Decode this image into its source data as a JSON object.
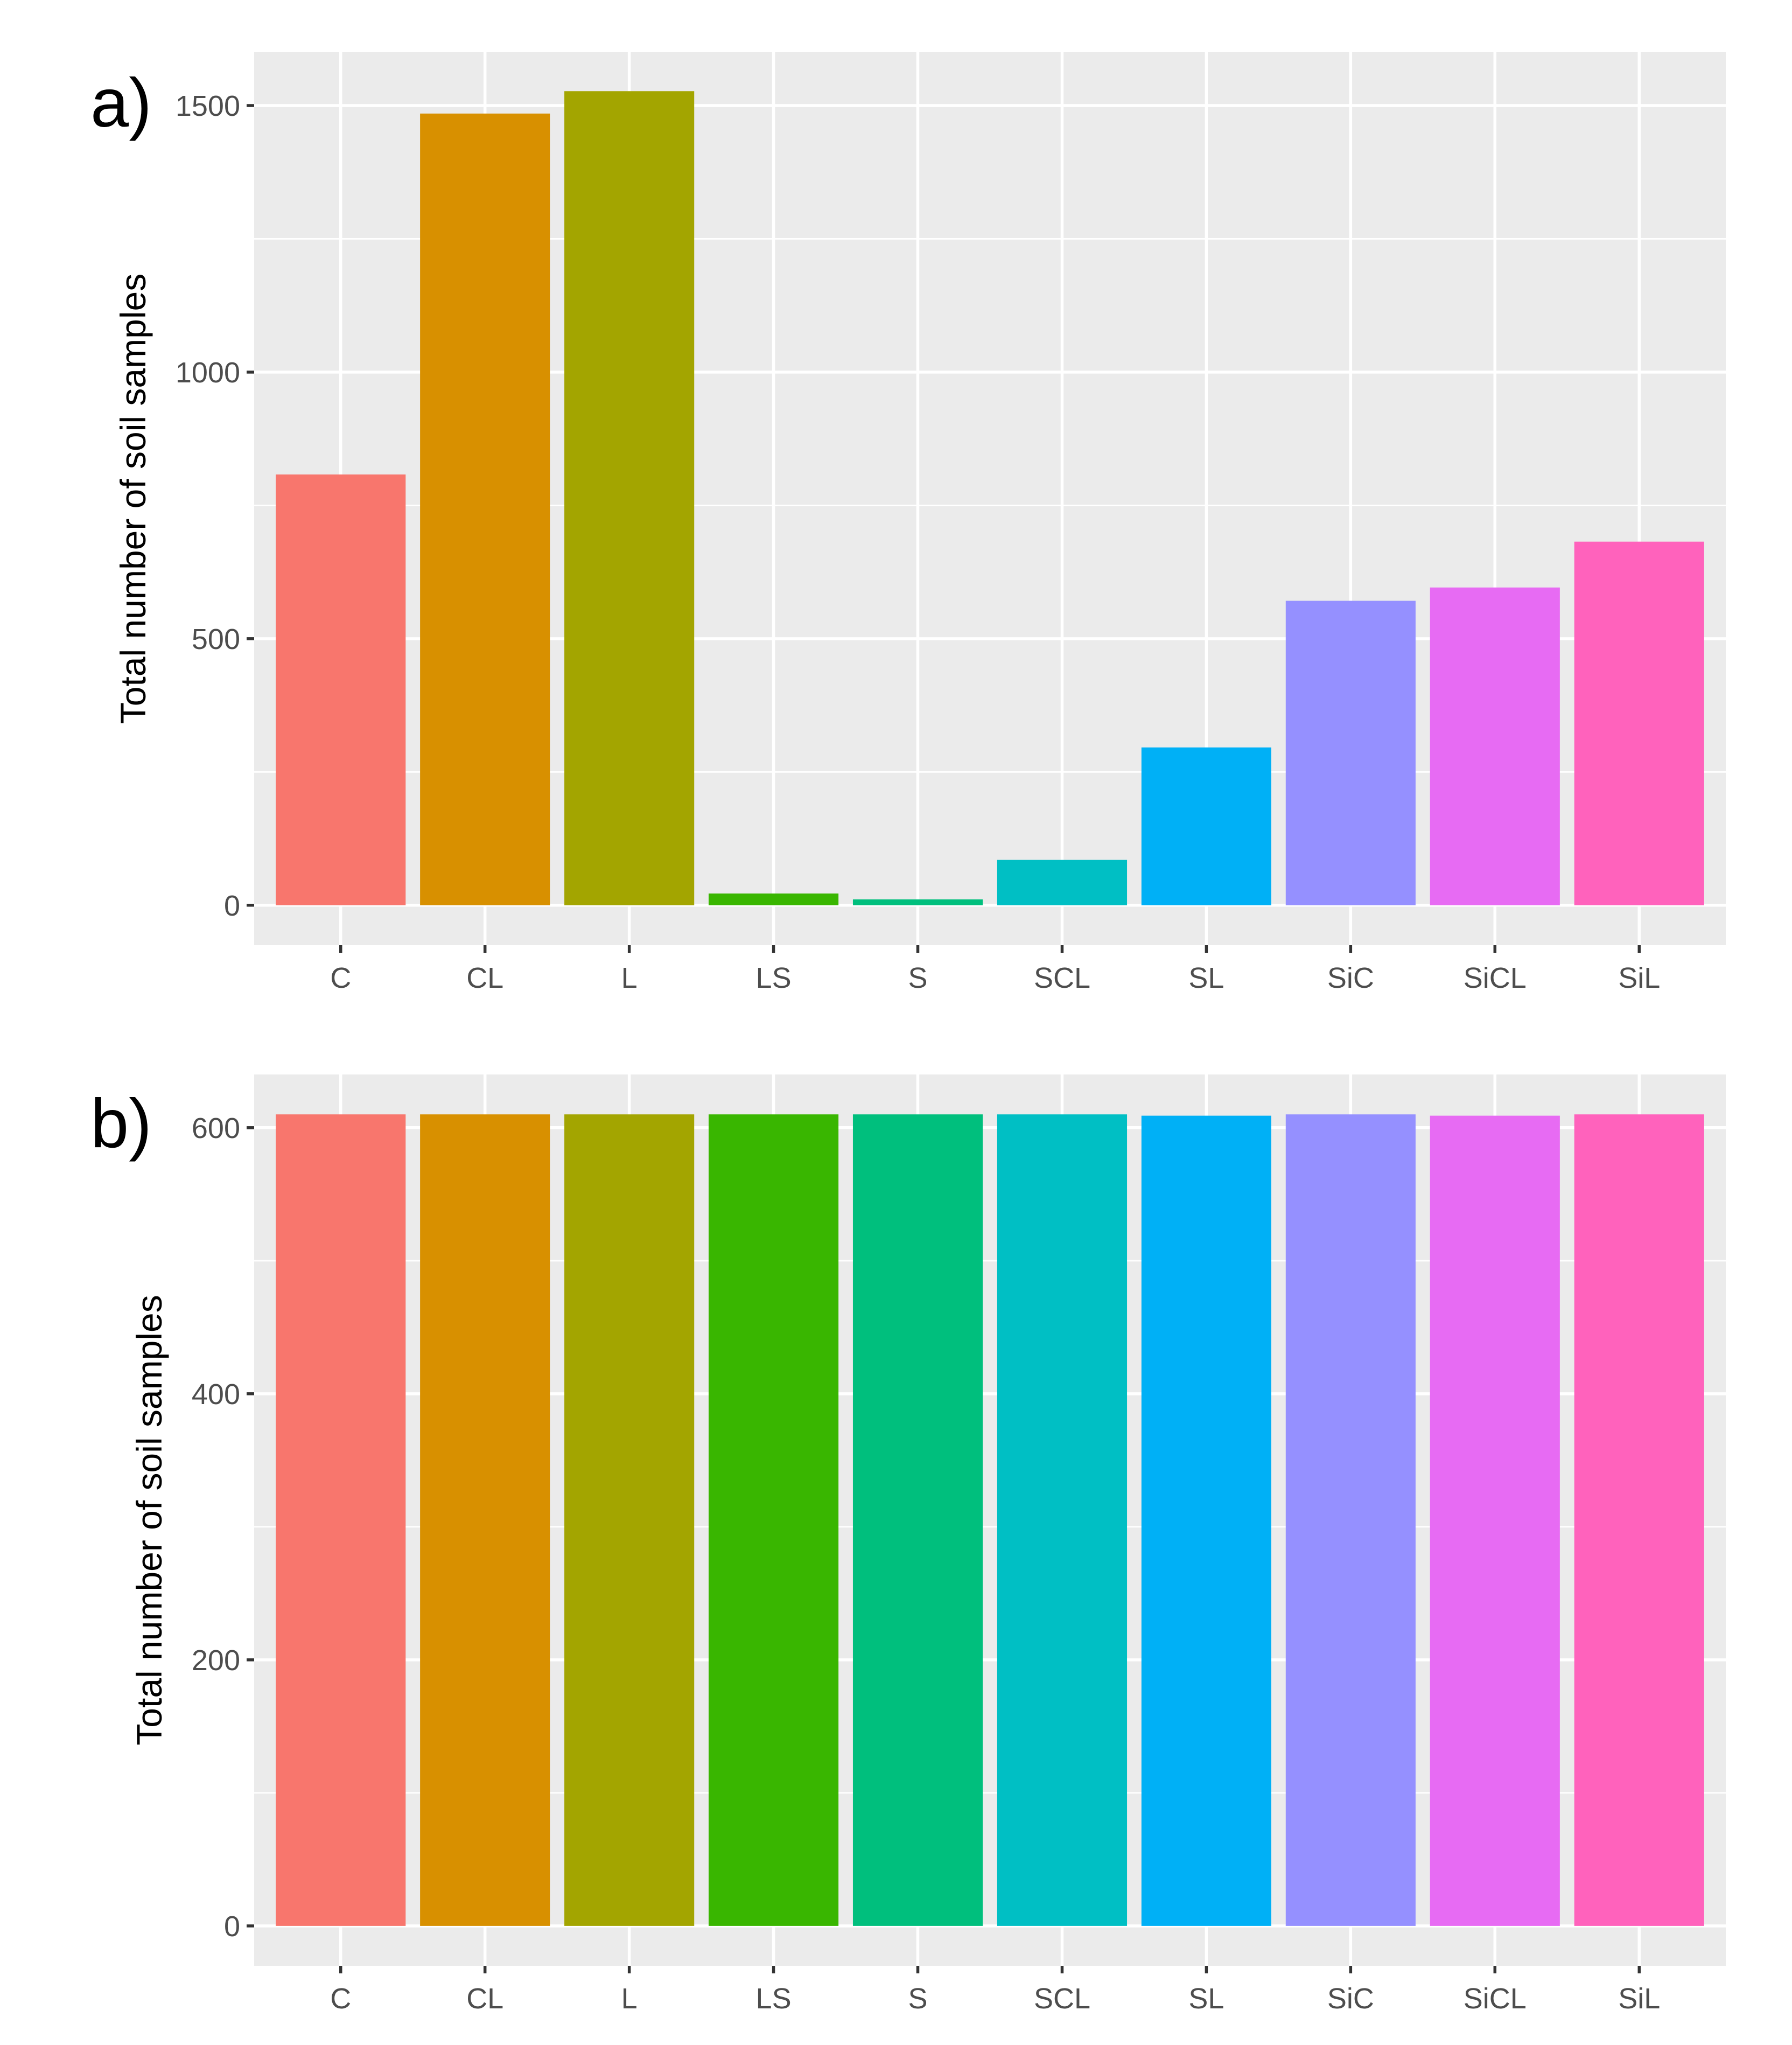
{
  "chart_data": [
    {
      "type": "bar",
      "panel_label": "a)",
      "ylabel": "Total number of soil samples",
      "xlabel": "",
      "categories": [
        "C",
        "CL",
        "L",
        "LS",
        "S",
        "SCL",
        "SL",
        "SiC",
        "SiCL",
        "SiL"
      ],
      "values": [
        808,
        1485,
        1527,
        22,
        11,
        85,
        296,
        571,
        596,
        682
      ],
      "ylim": [
        -75,
        1600
      ],
      "yticks": [
        0,
        500,
        1000,
        1500
      ],
      "grid": true,
      "legend": "none",
      "colors": [
        "#F8766D",
        "#D89000",
        "#A3A500",
        "#39B600",
        "#00BF7D",
        "#00BFC4",
        "#00B0F6",
        "#9590FF",
        "#E76BF3",
        "#FF62BC"
      ]
    },
    {
      "type": "bar",
      "panel_label": "b)",
      "ylabel": "Total number of soil samples",
      "xlabel": "",
      "categories": [
        "C",
        "CL",
        "L",
        "LS",
        "S",
        "SCL",
        "SL",
        "SiC",
        "SiCL",
        "SiL"
      ],
      "values": [
        610,
        610,
        610,
        610,
        610,
        610,
        609,
        610,
        609,
        610
      ],
      "ylim": [
        -30,
        640
      ],
      "yticks": [
        0,
        200,
        400,
        600
      ],
      "grid": true,
      "legend": "none",
      "colors": [
        "#F8766D",
        "#D89000",
        "#A3A500",
        "#39B600",
        "#00BF7D",
        "#00BFC4",
        "#00B0F6",
        "#9590FF",
        "#E76BF3",
        "#FF62BC"
      ]
    }
  ]
}
